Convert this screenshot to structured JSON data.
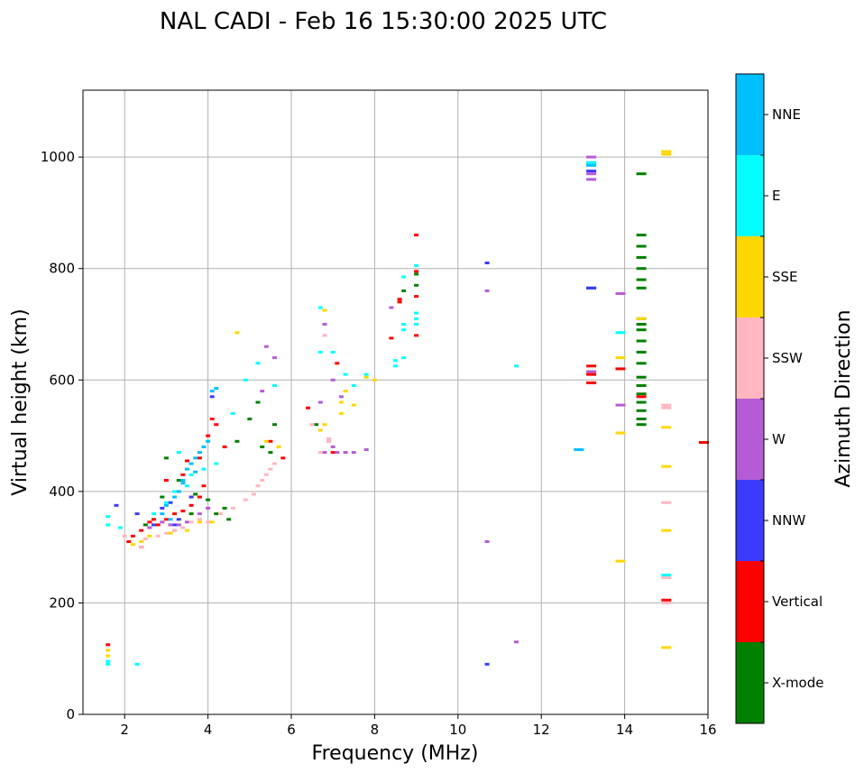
{
  "chart_data": {
    "type": "scatter",
    "title": "NAL CADI - Feb 16 15:30:00 2025 UTC",
    "xlabel": "Frequency (MHz)",
    "ylabel": "Virtual height (km)",
    "xlim": [
      1,
      16
    ],
    "ylim": [
      0,
      1120
    ],
    "xticks": [
      2,
      4,
      6,
      8,
      10,
      12,
      14,
      16
    ],
    "yticks": [
      0,
      200,
      400,
      600,
      800,
      1000
    ],
    "grid": true,
    "colorbar": {
      "label": "Azimuth Direction",
      "categories": [
        {
          "name": "X-mode",
          "color": "#008000"
        },
        {
          "name": "Vertical",
          "color": "#ff0000"
        },
        {
          "name": "NNW",
          "color": "#3b3bff"
        },
        {
          "name": "W",
          "color": "#b45cd6"
        },
        {
          "name": "SSW",
          "color": "#ffb6c1"
        },
        {
          "name": "SSE",
          "color": "#ffd700"
        },
        {
          "name": "E",
          "color": "#00ffff"
        },
        {
          "name": "NNE",
          "color": "#00bfff"
        }
      ]
    },
    "series": [
      {
        "name": "X-mode",
        "points": [
          [
            3.3,
            420
          ],
          [
            3.7,
            395
          ],
          [
            4.0,
            385
          ],
          [
            4.4,
            370
          ],
          [
            3.0,
            460
          ],
          [
            4.7,
            490
          ],
          [
            5.3,
            480
          ],
          [
            5.5,
            470
          ],
          [
            5.6,
            520
          ],
          [
            4.2,
            360
          ],
          [
            14.4,
            970
          ],
          [
            14.4,
            860
          ],
          [
            14.4,
            840
          ],
          [
            14.4,
            820
          ],
          [
            14.4,
            800
          ],
          [
            14.4,
            780
          ],
          [
            14.4,
            765
          ],
          [
            14.4,
            710
          ],
          [
            14.4,
            700
          ],
          [
            14.4,
            690
          ],
          [
            14.4,
            670
          ],
          [
            14.4,
            650
          ],
          [
            14.4,
            630
          ],
          [
            14.4,
            605
          ],
          [
            14.4,
            590
          ],
          [
            14.4,
            575
          ],
          [
            14.4,
            560
          ],
          [
            14.4,
            545
          ],
          [
            14.4,
            530
          ],
          [
            14.4,
            520
          ],
          [
            13.2,
            765
          ],
          [
            9.0,
            790
          ],
          [
            9.0,
            770
          ],
          [
            8.7,
            760
          ],
          [
            2.5,
            340
          ],
          [
            2.9,
            390
          ],
          [
            3.6,
            360
          ],
          [
            4.5,
            350
          ],
          [
            5.0,
            530
          ],
          [
            5.2,
            560
          ],
          [
            6.6,
            520
          ]
        ]
      },
      {
        "name": "Vertical",
        "points": [
          [
            2.2,
            320
          ],
          [
            2.4,
            330
          ],
          [
            2.6,
            345
          ],
          [
            2.8,
            340
          ],
          [
            3.0,
            350
          ],
          [
            3.2,
            360
          ],
          [
            3.4,
            365
          ],
          [
            3.6,
            375
          ],
          [
            3.8,
            390
          ],
          [
            3.0,
            420
          ],
          [
            3.4,
            430
          ],
          [
            3.8,
            460
          ],
          [
            4.0,
            500
          ],
          [
            4.1,
            530
          ],
          [
            4.2,
            520
          ],
          [
            2.4,
            300
          ],
          [
            2.7,
            350
          ],
          [
            2.1,
            310
          ],
          [
            1.6,
            125
          ],
          [
            5.5,
            490
          ],
          [
            5.8,
            460
          ],
          [
            6.4,
            550
          ],
          [
            7.0,
            470
          ],
          [
            7.1,
            630
          ],
          [
            8.4,
            675
          ],
          [
            8.6,
            745
          ],
          [
            8.6,
            740
          ],
          [
            9.0,
            860
          ],
          [
            9.0,
            750
          ],
          [
            9.0,
            795
          ],
          [
            9.0,
            680
          ],
          [
            13.2,
            625
          ],
          [
            13.2,
            610
          ],
          [
            13.2,
            595
          ],
          [
            13.9,
            620
          ],
          [
            14.4,
            570
          ],
          [
            15.0,
            205
          ],
          [
            15.9,
            488
          ],
          [
            3.2,
            330
          ],
          [
            3.9,
            410
          ],
          [
            4.4,
            480
          ],
          [
            3.5,
            455
          ]
        ]
      },
      {
        "name": "NNW",
        "points": [
          [
            1.8,
            375
          ],
          [
            2.3,
            360
          ],
          [
            2.7,
            340
          ],
          [
            3.2,
            340
          ],
          [
            3.3,
            350
          ],
          [
            3.6,
            390
          ],
          [
            4.1,
            570
          ],
          [
            10.7,
            810
          ],
          [
            10.7,
            90
          ],
          [
            13.2,
            975
          ],
          [
            13.2,
            765
          ],
          [
            2.9,
            370
          ],
          [
            3.1,
            380
          ]
        ]
      },
      {
        "name": "W",
        "points": [
          [
            2.6,
            335
          ],
          [
            2.9,
            345
          ],
          [
            3.1,
            340
          ],
          [
            3.3,
            340
          ],
          [
            3.5,
            345
          ],
          [
            3.8,
            360
          ],
          [
            4.0,
            370
          ],
          [
            5.3,
            580
          ],
          [
            5.4,
            660
          ],
          [
            5.6,
            640
          ],
          [
            6.7,
            560
          ],
          [
            6.8,
            700
          ],
          [
            6.9,
            490
          ],
          [
            7.0,
            480
          ],
          [
            7.1,
            470
          ],
          [
            6.8,
            470
          ],
          [
            7.5,
            470
          ],
          [
            7.3,
            470
          ],
          [
            7.0,
            600
          ],
          [
            7.2,
            570
          ],
          [
            8.4,
            730
          ],
          [
            8.7,
            700
          ],
          [
            10.7,
            760
          ],
          [
            10.7,
            310
          ],
          [
            11.4,
            130
          ],
          [
            13.2,
            1000
          ],
          [
            13.2,
            990
          ],
          [
            13.2,
            970
          ],
          [
            13.2,
            960
          ],
          [
            13.2,
            615
          ],
          [
            13.9,
            755
          ],
          [
            13.9,
            555
          ],
          [
            7.8,
            475
          ]
        ]
      },
      {
        "name": "SSW",
        "points": [
          [
            2.0,
            320
          ],
          [
            2.2,
            305
          ],
          [
            2.5,
            315
          ],
          [
            2.8,
            320
          ],
          [
            3.0,
            325
          ],
          [
            3.2,
            330
          ],
          [
            3.4,
            335
          ],
          [
            3.6,
            345
          ],
          [
            3.8,
            350
          ],
          [
            4.0,
            345
          ],
          [
            4.3,
            360
          ],
          [
            4.6,
            370
          ],
          [
            4.9,
            385
          ],
          [
            5.1,
            395
          ],
          [
            5.2,
            410
          ],
          [
            5.3,
            420
          ],
          [
            5.4,
            430
          ],
          [
            5.5,
            440
          ],
          [
            5.6,
            450
          ],
          [
            5.7,
            480
          ],
          [
            6.8,
            680
          ],
          [
            6.9,
            495
          ],
          [
            6.9,
            490
          ],
          [
            6.7,
            470
          ],
          [
            6.5,
            520
          ],
          [
            15.0,
            555
          ],
          [
            15.0,
            550
          ],
          [
            15.0,
            380
          ],
          [
            15.0,
            245
          ],
          [
            15.0,
            200
          ],
          [
            2.4,
            300
          ]
        ]
      },
      {
        "name": "SSE",
        "points": [
          [
            1.6,
            115
          ],
          [
            1.6,
            105
          ],
          [
            2.2,
            305
          ],
          [
            2.4,
            310
          ],
          [
            2.6,
            320
          ],
          [
            3.1,
            325
          ],
          [
            3.5,
            330
          ],
          [
            3.8,
            345
          ],
          [
            4.1,
            345
          ],
          [
            4.7,
            685
          ],
          [
            5.4,
            490
          ],
          [
            5.7,
            480
          ],
          [
            6.7,
            510
          ],
          [
            6.8,
            520
          ],
          [
            6.8,
            725
          ],
          [
            7.2,
            540
          ],
          [
            7.2,
            560
          ],
          [
            7.5,
            555
          ],
          [
            7.8,
            605
          ],
          [
            8.0,
            600
          ],
          [
            13.9,
            640
          ],
          [
            13.9,
            505
          ],
          [
            13.9,
            275
          ],
          [
            14.4,
            710
          ],
          [
            15.0,
            1010
          ],
          [
            15.0,
            1005
          ],
          [
            15.0,
            515
          ],
          [
            15.0,
            445
          ],
          [
            15.0,
            330
          ],
          [
            15.0,
            120
          ],
          [
            7.3,
            580
          ]
        ]
      },
      {
        "name": "E",
        "points": [
          [
            1.6,
            355
          ],
          [
            1.6,
            340
          ],
          [
            1.6,
            95
          ],
          [
            1.6,
            90
          ],
          [
            1.9,
            335
          ],
          [
            2.3,
            90
          ],
          [
            2.7,
            360
          ],
          [
            3.0,
            380
          ],
          [
            3.2,
            400
          ],
          [
            3.5,
            410
          ],
          [
            3.6,
            430
          ],
          [
            3.9,
            440
          ],
          [
            4.2,
            450
          ],
          [
            4.6,
            540
          ],
          [
            4.9,
            600
          ],
          [
            5.2,
            630
          ],
          [
            5.6,
            590
          ],
          [
            6.7,
            730
          ],
          [
            6.7,
            650
          ],
          [
            7.0,
            650
          ],
          [
            7.3,
            610
          ],
          [
            7.5,
            590
          ],
          [
            7.8,
            610
          ],
          [
            8.5,
            635
          ],
          [
            8.5,
            625
          ],
          [
            8.7,
            640
          ],
          [
            8.7,
            785
          ],
          [
            8.7,
            700
          ],
          [
            8.7,
            690
          ],
          [
            9.0,
            805
          ],
          [
            9.0,
            720
          ],
          [
            9.0,
            710
          ],
          [
            9.0,
            700
          ],
          [
            11.4,
            625
          ],
          [
            13.2,
            990
          ],
          [
            13.9,
            685
          ],
          [
            15.0,
            250
          ],
          [
            3.3,
            470
          ]
        ]
      },
      {
        "name": "NNE",
        "points": [
          [
            2.9,
            360
          ],
          [
            3.0,
            375
          ],
          [
            3.2,
            390
          ],
          [
            3.3,
            400
          ],
          [
            3.4,
            420
          ],
          [
            3.5,
            440
          ],
          [
            3.6,
            450
          ],
          [
            3.7,
            460
          ],
          [
            3.8,
            470
          ],
          [
            3.9,
            480
          ],
          [
            4.0,
            490
          ],
          [
            4.1,
            580
          ],
          [
            4.2,
            585
          ],
          [
            3.1,
            350
          ],
          [
            12.9,
            475
          ],
          [
            13.2,
            985
          ],
          [
            3.4,
            415
          ],
          [
            3.7,
            435
          ]
        ]
      }
    ]
  }
}
